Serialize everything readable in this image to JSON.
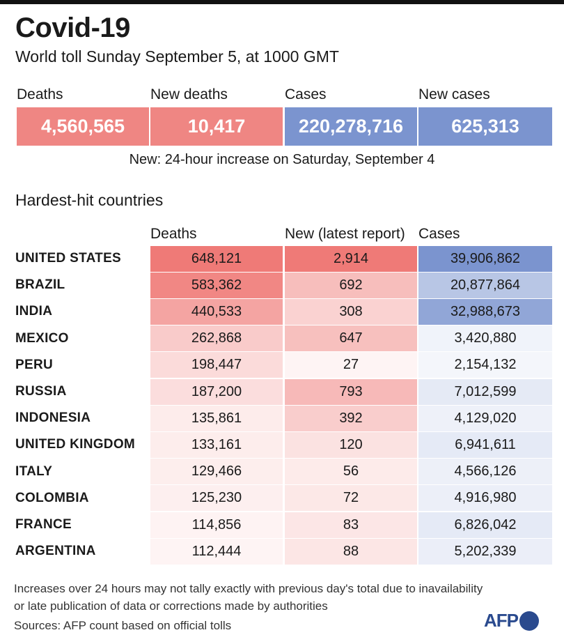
{
  "title": "Covid-19",
  "subtitle": "World toll Sunday September 5, at 1000 GMT",
  "summary": [
    {
      "label": "Deaths",
      "value": "4,560,565",
      "color": "#ef8683"
    },
    {
      "label": "New deaths",
      "value": "10,417",
      "color": "#ef8683"
    },
    {
      "label": "Cases",
      "value": "220,278,716",
      "color": "#7b94cf"
    },
    {
      "label": "New cases",
      "value": "625,313",
      "color": "#7b94cf"
    }
  ],
  "summary_note": "New: 24-hour increase on Saturday, September 4",
  "section_title": "Hardest-hit countries",
  "logo_text": "AFP",
  "footnote": "Increases over 24 hours may not tally exactly with previous day's total due to inavailability or late publication of data or corrections made by authorities",
  "sources": "Sources: AFP count based on official tolls",
  "chart_data": {
    "type": "table",
    "title": "Hardest-hit countries",
    "columns": [
      "Deaths",
      "New (latest report)",
      "Cases"
    ],
    "rows": [
      {
        "country": "UNITED STATES",
        "deaths": 648121,
        "new": 2914,
        "cases": 39906862,
        "deaths_label": "648,121",
        "new_label": "2,914",
        "cases_label": "39,906,862"
      },
      {
        "country": "BRAZIL",
        "deaths": 583362,
        "new": 692,
        "cases": 20877864,
        "deaths_label": "583,362",
        "new_label": "692",
        "cases_label": "20,877,864"
      },
      {
        "country": "INDIA",
        "deaths": 440533,
        "new": 308,
        "cases": 32988673,
        "deaths_label": "440,533",
        "new_label": "308",
        "cases_label": "32,988,673"
      },
      {
        "country": "MEXICO",
        "deaths": 262868,
        "new": 647,
        "cases": 3420880,
        "deaths_label": "262,868",
        "new_label": "647",
        "cases_label": "3,420,880"
      },
      {
        "country": "PERU",
        "deaths": 198447,
        "new": 27,
        "cases": 2154132,
        "deaths_label": "198,447",
        "new_label": "27",
        "cases_label": "2,154,132"
      },
      {
        "country": "RUSSIA",
        "deaths": 187200,
        "new": 793,
        "cases": 7012599,
        "deaths_label": "187,200",
        "new_label": "793",
        "cases_label": "7,012,599"
      },
      {
        "country": "INDONESIA",
        "deaths": 135861,
        "new": 392,
        "cases": 4129020,
        "deaths_label": "135,861",
        "new_label": "392",
        "cases_label": "4,129,020"
      },
      {
        "country": "UNITED KINGDOM",
        "deaths": 133161,
        "new": 120,
        "cases": 6941611,
        "deaths_label": "133,161",
        "new_label": "120",
        "cases_label": "6,941,611"
      },
      {
        "country": "ITALY",
        "deaths": 129466,
        "new": 56,
        "cases": 4566126,
        "deaths_label": "129,466",
        "new_label": "56",
        "cases_label": "4,566,126"
      },
      {
        "country": "COLOMBIA",
        "deaths": 125230,
        "new": 72,
        "cases": 4916980,
        "deaths_label": "125,230",
        "new_label": "72",
        "cases_label": "4,916,980"
      },
      {
        "country": "FRANCE",
        "deaths": 114856,
        "new": 83,
        "cases": 6826042,
        "deaths_label": "114,856",
        "new_label": "83",
        "cases_label": "6,826,042"
      },
      {
        "country": "ARGENTINA",
        "deaths": 112444,
        "new": 88,
        "cases": 5202339,
        "deaths_label": "112,444",
        "new_label": "88",
        "cases_label": "5,202,339"
      }
    ],
    "color_scale": {
      "deaths_new": "#ef7a77",
      "cases": "#7b94cf"
    }
  }
}
